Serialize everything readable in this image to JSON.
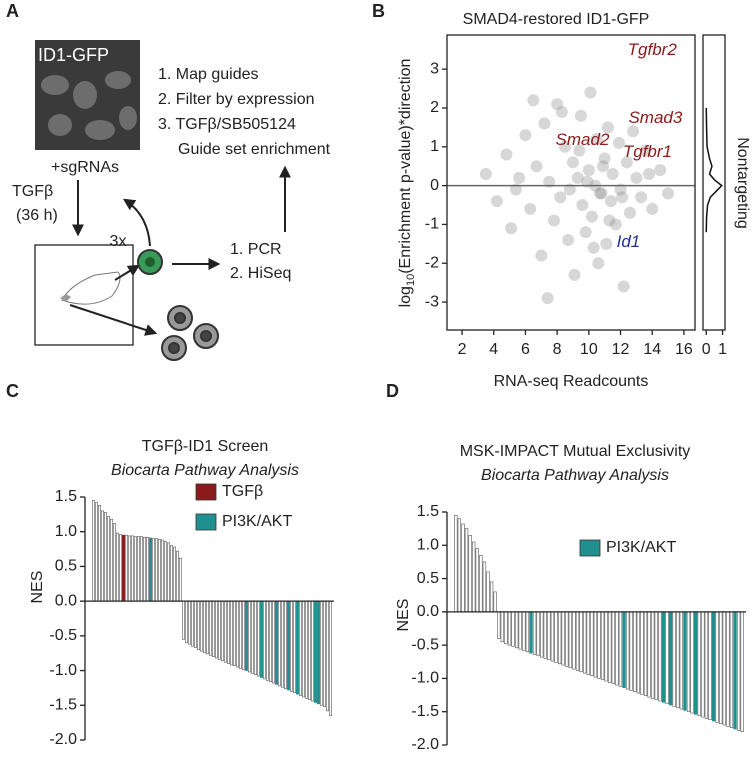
{
  "panel_labels": [
    "A",
    "B",
    "C",
    "D"
  ],
  "diagram": {
    "image_label": "ID1-GFP",
    "under_image": "+sgRNAs",
    "treatment": [
      "TGFβ",
      "(36 h)"
    ],
    "repeat": "3x",
    "analysis_steps": [
      "1. Map guides",
      "2. Filter by expression",
      "3. TGFβ/SB505124",
      "Guide set enrichment"
    ],
    "sequencing_steps": [
      "1. PCR",
      "2. HiSeq"
    ]
  },
  "chart_data": [
    {
      "type": "scatter",
      "title": "SMAD4-restored ID1-GFP",
      "xlabel": "RNA-seq Readcounts",
      "ylabel": {
        "base": "log",
        "subscript": "10",
        "rest": "(Enrichment p-value)*direction"
      },
      "xlim": [
        1.05,
        16.7
      ],
      "ylim": [
        -3.72,
        3.88
      ],
      "xticks": [
        2,
        4,
        6,
        8,
        10,
        12,
        14,
        16
      ],
      "yticks": [
        -3,
        -2,
        -1,
        0,
        1,
        2,
        3
      ],
      "color": "#8c8c8c",
      "hline": 0,
      "x": [
        3.5,
        4.2,
        4.8,
        5.1,
        5.6,
        6.0,
        6.3,
        6.7,
        7.0,
        7.2,
        7.5,
        7.8,
        8.0,
        8.2,
        8.5,
        8.7,
        9.0,
        9.1,
        9.3,
        9.5,
        9.6,
        9.8,
        10.0,
        10.1,
        10.2,
        10.4,
        10.5,
        10.6,
        10.8,
        11.0,
        11.1,
        11.2,
        11.4,
        11.5,
        11.7,
        11.9,
        12.0,
        12.2,
        12.4,
        12.6,
        12.8,
        13.0,
        13.3,
        13.6,
        14.0,
        14.5,
        15.0,
        8.8,
        9.4,
        10.3,
        10.9,
        11.3,
        7.4,
        6.5,
        12.1,
        9.9,
        10.7,
        8.3,
        5.4,
        13.8
      ],
      "y": [
        0.3,
        -0.4,
        0.8,
        -1.1,
        0.2,
        1.3,
        -0.6,
        0.5,
        -1.8,
        1.6,
        0.1,
        -0.9,
        2.1,
        -0.3,
        1.0,
        -1.4,
        0.6,
        -2.3,
        0.2,
        1.8,
        -0.5,
        -1.2,
        0.4,
        2.4,
        -0.8,
        0.0,
        1.2,
        -2.0,
        -0.2,
        0.7,
        -1.5,
        1.5,
        -0.4,
        0.3,
        -1.0,
        1.1,
        -0.1,
        -2.6,
        0.6,
        -0.7,
        1.4,
        0.2,
        -0.3,
        0.9,
        -0.6,
        0.4,
        -0.2,
        -0.1,
        0.9,
        -1.6,
        0.5,
        -0.9,
        -2.9,
        2.2,
        -0.3,
        0.1,
        -0.2,
        1.9,
        -0.1,
        0.3
      ],
      "annotations": [
        {
          "text": "Tgfbr2",
          "x": 14.0,
          "y": 3.48,
          "color": "#8b1a1a"
        },
        {
          "text": "Smad3",
          "x": 14.2,
          "y": 1.73,
          "color": "#8b1a1a"
        },
        {
          "text": "Smad2",
          "x": 9.6,
          "y": 1.16,
          "color": "#8b1a1a"
        },
        {
          "text": "Tgfbr1",
          "x": 13.7,
          "y": 0.85,
          "color": "#8b1a1a"
        },
        {
          "text": "Id1",
          "x": 12.5,
          "y": -1.47,
          "color": "#1f2f8f"
        }
      ],
      "density": {
        "label": "Nontargeting",
        "xlim": [
          -0.2,
          1.15
        ],
        "xticks": [
          0,
          1
        ],
        "y": [
          2,
          1.5,
          1,
          0.7,
          0.5,
          0.3,
          0.15,
          0,
          -0.15,
          -0.3,
          -0.5,
          -0.8,
          -1.2
        ],
        "x": [
          0,
          0.02,
          0.05,
          0.2,
          0.35,
          0.2,
          0.5,
          0.95,
          0.6,
          0.25,
          0.08,
          0.02,
          0
        ]
      }
    },
    {
      "type": "bar",
      "title": "TGFβ-ID1 Screen",
      "subtitle": "Biocarta Pathway Analysis",
      "ylabel": "NES",
      "ylim": [
        -2.0,
        1.5
      ],
      "yticks": [
        {
          "value": -2,
          "label": "-2.0"
        },
        {
          "value": -1.5,
          "label": "-1.5"
        },
        {
          "value": -1,
          "label": "-1.0"
        },
        {
          "value": -0.5,
          "label": "-0.5"
        },
        {
          "value": 0,
          "label": "0.0"
        },
        {
          "value": 0.5,
          "label": "0.5"
        },
        {
          "value": 1,
          "label": "1.0"
        },
        1.5
      ],
      "color": "#ffffff",
      "legend": [
        {
          "name": "TGFβ",
          "color": "#8b1a1a"
        },
        {
          "name": "PI3K/AKT",
          "color": "#1f8f8f"
        }
      ],
      "values": [
        1.45,
        1.42,
        1.38,
        1.3,
        1.28,
        1.22,
        1.18,
        1.12,
        0.98,
        0.96,
        0.95,
        0.95,
        0.94,
        0.94,
        0.93,
        0.93,
        0.93,
        0.92,
        0.92,
        0.91,
        0.9,
        0.9,
        0.89,
        0.88,
        0.86,
        0.84,
        0.8,
        0.78,
        0.72,
        0.62,
        -0.55,
        -0.6,
        -0.62,
        -0.65,
        -0.67,
        -0.7,
        -0.72,
        -0.74,
        -0.76,
        -0.78,
        -0.8,
        -0.82,
        -0.84,
        -0.86,
        -0.88,
        -0.9,
        -0.92,
        -0.93,
        -0.95,
        -0.97,
        -0.99,
        -1.0,
        -1.02,
        -1.04,
        -1.06,
        -1.08,
        -1.1,
        -1.12,
        -1.14,
        -1.16,
        -1.18,
        -1.2,
        -1.22,
        -1.24,
        -1.26,
        -1.28,
        -1.3,
        -1.32,
        -1.34,
        -1.36,
        -1.38,
        -1.4,
        -1.42,
        -1.44,
        -1.46,
        -1.48,
        -1.5,
        -1.52,
        -1.58,
        -1.65
      ],
      "colors": [
        null,
        null,
        null,
        null,
        null,
        null,
        null,
        null,
        null,
        null,
        "#8b1a1a",
        null,
        null,
        null,
        null,
        null,
        null,
        null,
        null,
        "#1f8f8f",
        null,
        null,
        null,
        null,
        null,
        null,
        null,
        null,
        null,
        null,
        null,
        null,
        null,
        null,
        null,
        null,
        null,
        null,
        null,
        null,
        null,
        null,
        null,
        null,
        null,
        null,
        null,
        null,
        null,
        null,
        null,
        "#1f8f8f",
        null,
        null,
        null,
        null,
        "#1f8f8f",
        null,
        null,
        null,
        null,
        "#1f8f8f",
        null,
        null,
        null,
        "#1f8f8f",
        null,
        null,
        "#1f8f8f",
        null,
        null,
        null,
        null,
        null,
        "#1f8f8f",
        "#1f8f8f",
        null,
        null,
        null,
        null
      ]
    },
    {
      "type": "bar",
      "title": "MSK-IMPACT Mutual Exclusivity",
      "subtitle": "Biocarta Pathway Analysis",
      "ylabel": "NES",
      "ylim": [
        -2.0,
        1.5
      ],
      "yticks": [
        {
          "value": -2,
          "label": "-2.0"
        },
        {
          "value": -1.5,
          "label": "-1.5"
        },
        {
          "value": -1,
          "label": "-1.0"
        },
        {
          "value": -0.5,
          "label": "-0.5"
        },
        {
          "value": 0,
          "label": "0.0"
        },
        {
          "value": 0.5,
          "label": "0.5"
        },
        {
          "value": 1,
          "label": "1.0"
        },
        1.5
      ],
      "color": "#ffffff",
      "legend": [
        {
          "name": "PI3K/AKT",
          "color": "#1f8f8f"
        }
      ],
      "values": [
        1.45,
        1.4,
        1.32,
        1.25,
        1.15,
        1.05,
        0.95,
        0.85,
        0.75,
        0.6,
        0.45,
        0.3,
        -0.4,
        -0.45,
        -0.48,
        -0.5,
        -0.52,
        -0.54,
        -0.56,
        -0.58,
        -0.6,
        -0.62,
        -0.64,
        -0.66,
        -0.68,
        -0.7,
        -0.72,
        -0.74,
        -0.76,
        -0.78,
        -0.8,
        -0.82,
        -0.84,
        -0.86,
        -0.88,
        -0.9,
        -0.92,
        -0.94,
        -0.96,
        -0.98,
        -1.0,
        -1.02,
        -1.04,
        -1.06,
        -1.08,
        -1.1,
        -1.12,
        -1.14,
        -1.16,
        -1.18,
        -1.2,
        -1.22,
        -1.24,
        -1.26,
        -1.28,
        -1.3,
        -1.32,
        -1.34,
        -1.36,
        -1.38,
        -1.4,
        -1.42,
        -1.44,
        -1.46,
        -1.48,
        -1.5,
        -1.52,
        -1.54,
        -1.56,
        -1.58,
        -1.6,
        -1.62,
        -1.64,
        -1.66,
        -1.68,
        -1.7,
        -1.72,
        -1.74,
        -1.76,
        -1.78,
        -1.8
      ],
      "colors": [
        null,
        null,
        null,
        null,
        null,
        null,
        null,
        null,
        null,
        null,
        null,
        null,
        null,
        null,
        null,
        null,
        null,
        null,
        null,
        null,
        null,
        "#1f8f8f",
        null,
        null,
        null,
        null,
        null,
        null,
        null,
        null,
        null,
        null,
        null,
        null,
        null,
        null,
        null,
        null,
        null,
        null,
        null,
        null,
        null,
        null,
        null,
        null,
        null,
        "#1f8f8f",
        null,
        null,
        null,
        null,
        null,
        null,
        null,
        null,
        null,
        null,
        "#1f8f8f",
        null,
        "#1f8f8f",
        null,
        null,
        null,
        "#1f8f8f",
        null,
        null,
        "#1f8f8f",
        null,
        null,
        null,
        null,
        "#1f8f8f",
        null,
        null,
        null,
        null,
        null,
        "#1f8f8f",
        null,
        null
      ]
    }
  ]
}
